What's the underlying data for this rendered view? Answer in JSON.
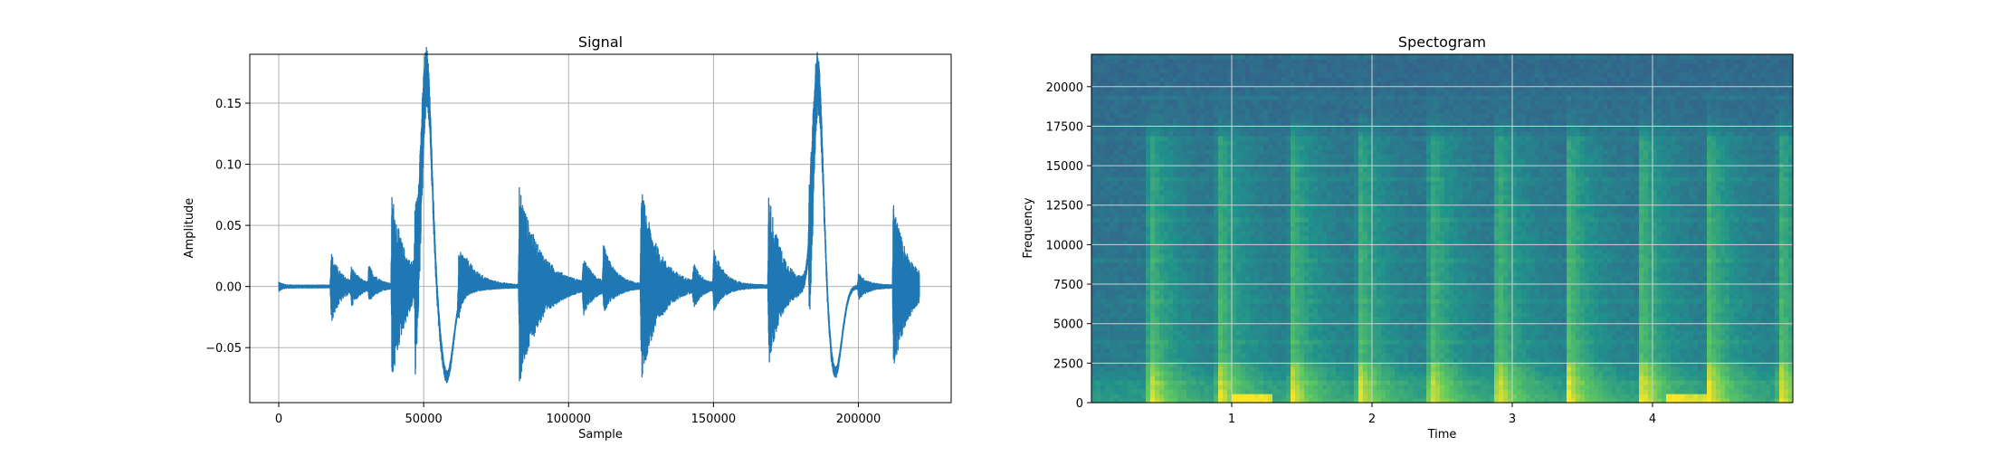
{
  "chart_data": [
    {
      "type": "line",
      "title": "Signal",
      "xlabel": "Sample",
      "ylabel": "Amplitude",
      "xlim": [
        -10000,
        232000
      ],
      "ylim": [
        -0.095,
        0.19
      ],
      "xticks": [
        0,
        50000,
        100000,
        150000,
        200000
      ],
      "xtick_labels": [
        "0",
        "50000",
        "100000",
        "150000",
        "200000"
      ],
      "yticks": [
        -0.05,
        0.0,
        0.05,
        0.1,
        0.15
      ],
      "ytick_labels": [
        "−0.05",
        "0.00",
        "0.05",
        "0.10",
        "0.15"
      ],
      "grid": true,
      "color": "#1f77b4",
      "events": [
        {
          "x": 0,
          "pos": 0.003,
          "neg": -0.003,
          "decay": 1200
        },
        {
          "x": 18000,
          "pos": 0.028,
          "neg": -0.03,
          "decay": 3500
        },
        {
          "x": 25000,
          "pos": 0.012,
          "neg": -0.012,
          "decay": 3000
        },
        {
          "x": 31000,
          "pos": 0.015,
          "neg": -0.01,
          "decay": 3000
        },
        {
          "x": 39000,
          "pos": 0.077,
          "neg": -0.081,
          "decay": 4500
        },
        {
          "x": 47000,
          "pos": 0.04,
          "neg": -0.08,
          "decay": 3500
        },
        {
          "x": 62000,
          "pos": 0.04,
          "neg": -0.01,
          "decay": 5000
        },
        {
          "x": 83000,
          "pos": 0.082,
          "neg": -0.081,
          "decay": 7000
        },
        {
          "x": 105000,
          "pos": 0.02,
          "neg": -0.02,
          "decay": 3500
        },
        {
          "x": 112000,
          "pos": 0.03,
          "neg": -0.018,
          "decay": 4000
        },
        {
          "x": 125000,
          "pos": 0.08,
          "neg": -0.077,
          "decay": 6000
        },
        {
          "x": 143000,
          "pos": 0.016,
          "neg": -0.015,
          "decay": 2500
        },
        {
          "x": 150000,
          "pos": 0.03,
          "neg": -0.018,
          "decay": 3500
        },
        {
          "x": 169000,
          "pos": 0.078,
          "neg": -0.065,
          "decay": 4500
        },
        {
          "x": 183000,
          "pos": 0.04,
          "neg": -0.085,
          "decay": 3000
        },
        {
          "x": 200000,
          "pos": 0.01,
          "neg": -0.01,
          "decay": 3000
        },
        {
          "x": 212000,
          "pos": 0.07,
          "neg": -0.073,
          "decay": 5000
        }
      ],
      "swings": [
        {
          "x": 51000,
          "peak": 0.177,
          "trough": -0.073,
          "width": 2500,
          "gap": 3500
        },
        {
          "x": 186000,
          "peak": 0.176,
          "trough": -0.07,
          "width": 2500,
          "gap": 3000
        }
      ],
      "x_end": 221000
    },
    {
      "type": "heatmap",
      "title": "Spectogram",
      "xlabel": "Time",
      "ylabel": "Frequency",
      "xlim": [
        0,
        5.0
      ],
      "ylim": [
        0,
        22050
      ],
      "xticks": [
        1,
        2,
        3,
        4
      ],
      "xtick_labels": [
        "1",
        "2",
        "3",
        "4"
      ],
      "yticks": [
        0,
        2500,
        5000,
        7500,
        10000,
        12500,
        15000,
        17500,
        20000
      ],
      "ytick_labels": [
        "0",
        "2500",
        "5000",
        "7500",
        "10000",
        "12500",
        "15000",
        "17500",
        "20000"
      ],
      "grid": true,
      "colormap": "viridis",
      "onsets": [
        0.41,
        0.9,
        1.42,
        1.9,
        2.41,
        2.89,
        3.4,
        3.92,
        4.4,
        4.9
      ],
      "low_freq_bursts": [
        [
          1.0,
          1.3
        ],
        [
          4.1,
          4.4
        ]
      ]
    }
  ]
}
